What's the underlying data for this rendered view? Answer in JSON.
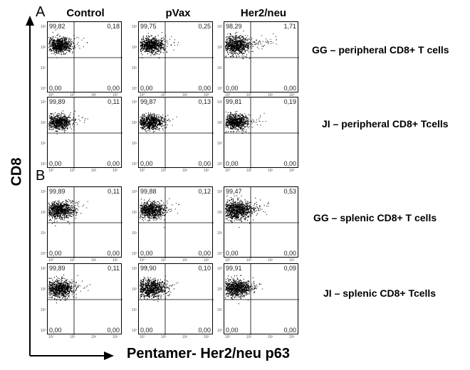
{
  "panels": {
    "A": "A",
    "B": "B"
  },
  "columns": [
    "Control",
    "pVax",
    "Her2/neu"
  ],
  "axes": {
    "y_title": "CD8",
    "x_title": "Pentamer- Her2/neu p63"
  },
  "tick_labels": {
    "x": [
      "10⁰",
      "10¹",
      "10²",
      "10³"
    ],
    "y": [
      "10⁰",
      "10¹",
      "10²",
      "10³"
    ]
  },
  "rows": [
    {
      "label": "GG – peripheral CD8+ T cells",
      "plots": [
        {
          "tl": "99,82",
          "tr": "0,18",
          "bl": "0,00",
          "br": "0,00"
        },
        {
          "tl": "99,75",
          "tr": "0,25",
          "bl": "0,00",
          "br": "0,00"
        },
        {
          "tl": "98,29",
          "tr": "1,71",
          "bl": "0,00",
          "br": "0,00"
        }
      ]
    },
    {
      "label": "JI – peripheral CD8+ Tcells",
      "plots": [
        {
          "tl": "99,89",
          "tr": "0,11",
          "bl": "0,00",
          "br": "0,00"
        },
        {
          "tl": "99,87",
          "tr": "0,13",
          "bl": "0,00",
          "br": "0,00"
        },
        {
          "tl": "99,81",
          "tr": "0,19",
          "bl": "0,00",
          "br": "0,00"
        }
      ]
    },
    {
      "label": "GG – splenic CD8+ T cells",
      "plots": [
        {
          "tl": "99,89",
          "tr": "0,11",
          "bl": "0,00",
          "br": "0,00"
        },
        {
          "tl": "99,88",
          "tr": "0,12",
          "bl": "0,00",
          "br": "0,00"
        },
        {
          "tl": "99,47",
          "tr": "0,53",
          "bl": "0,00",
          "br": "0,00"
        }
      ]
    },
    {
      "label": "JI – splenic CD8+ Tcells",
      "plots": [
        {
          "tl": "99,89",
          "tr": "0,11",
          "bl": "0,00",
          "br": "0,00"
        },
        {
          "tl": "99,90",
          "tr": "0,10",
          "bl": "0,00",
          "br": "0,00"
        },
        {
          "tl": "99,91",
          "tr": "0,09",
          "bl": "0,00",
          "br": "0,00"
        }
      ]
    }
  ]
}
